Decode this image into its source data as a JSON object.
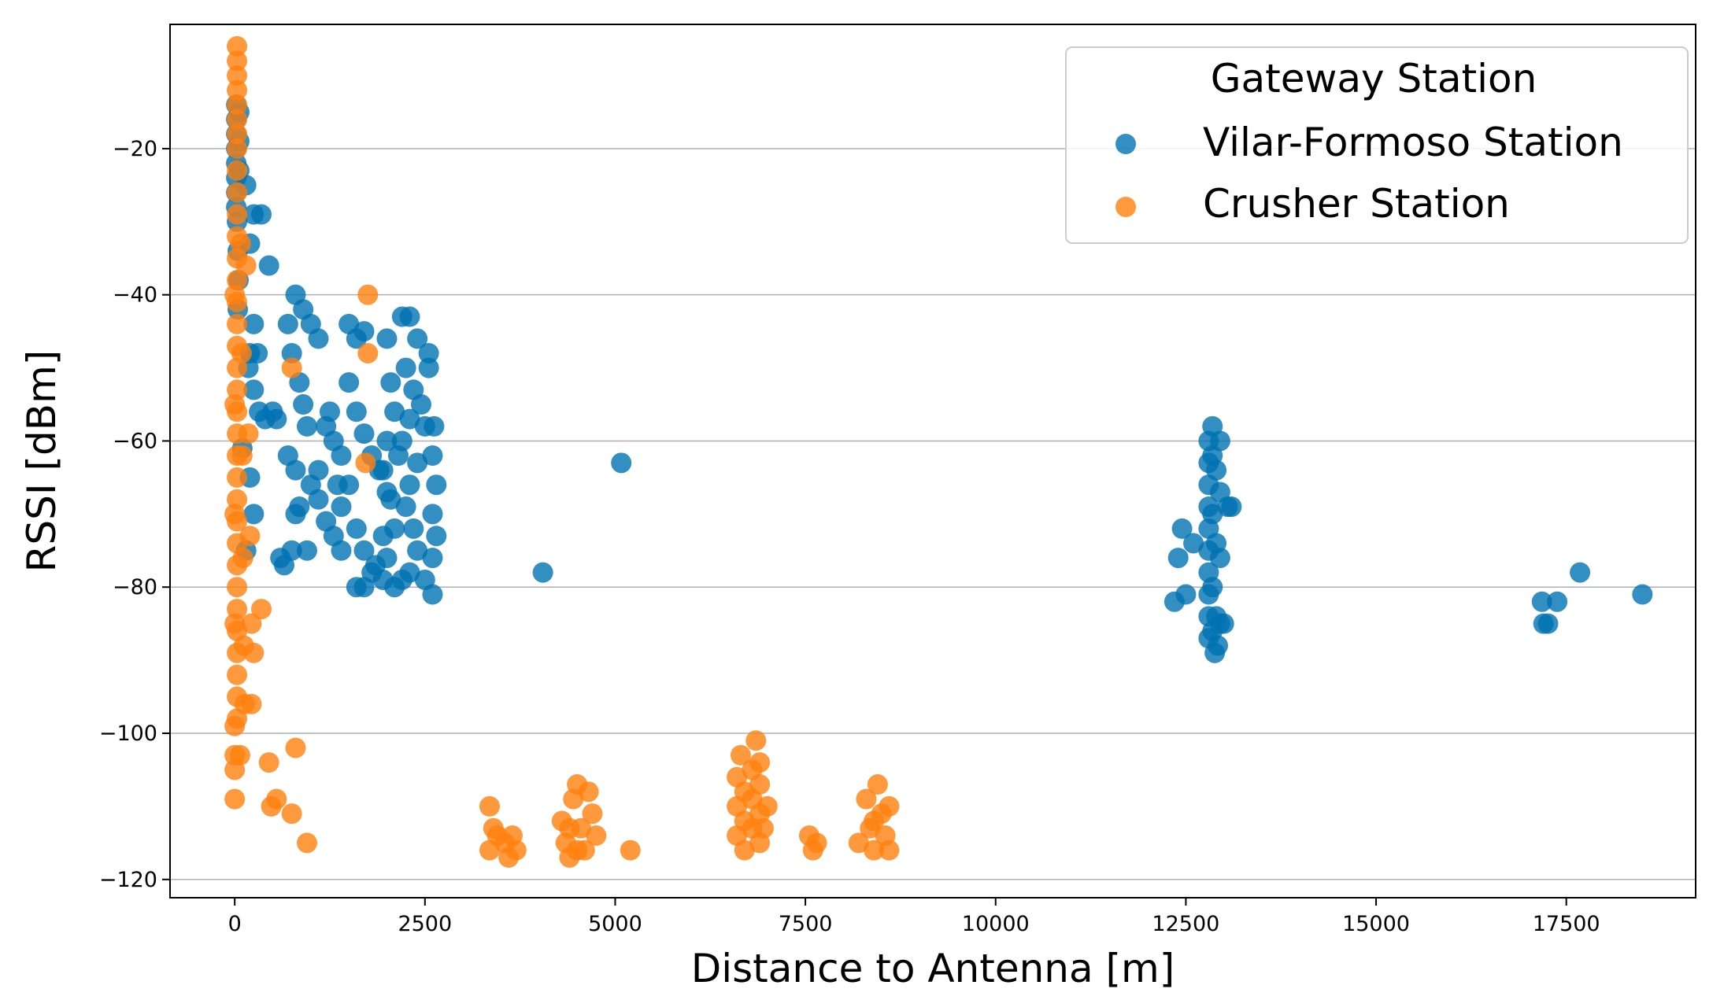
{
  "chart_data": {
    "type": "scatter",
    "title": "",
    "xlabel": "Distance to Antenna [m]",
    "ylabel": "RSSI [dBm]",
    "xlim": [
      -850,
      19200
    ],
    "ylim": [
      -122.5,
      -3
    ],
    "xticks": [
      0,
      2500,
      5000,
      7500,
      10000,
      12500,
      15000,
      17500
    ],
    "xtick_labels": [
      "0",
      "2500",
      "5000",
      "7500",
      "10000",
      "12500",
      "15000",
      "17500"
    ],
    "yticks": [
      -20,
      -40,
      -60,
      -80,
      -100,
      -120
    ],
    "ytick_labels": [
      "−20",
      "−40",
      "−60",
      "−80",
      "−100",
      "−120"
    ],
    "grid": "horizontal",
    "legend": {
      "title": "Gateway Station",
      "position": "top-right"
    },
    "series": [
      {
        "name": "Vilar-Formoso Station",
        "color": "#0072B2",
        "points": [
          [
            20,
            -14
          ],
          [
            20,
            -16
          ],
          [
            20,
            -18
          ],
          [
            20,
            -20
          ],
          [
            20,
            -22
          ],
          [
            20,
            -24
          ],
          [
            20,
            -26
          ],
          [
            20,
            -28
          ],
          [
            60,
            -15
          ],
          [
            60,
            -19
          ],
          [
            60,
            -23
          ],
          [
            30,
            -30
          ],
          [
            40,
            -34
          ],
          [
            50,
            -38
          ],
          [
            40,
            -42
          ],
          [
            150,
            -25
          ],
          [
            250,
            -29
          ],
          [
            350,
            -29
          ],
          [
            450,
            -36
          ],
          [
            200,
            -33
          ],
          [
            250,
            -44
          ],
          [
            200,
            -48
          ],
          [
            300,
            -48
          ],
          [
            180,
            -50
          ],
          [
            250,
            -53
          ],
          [
            320,
            -56
          ],
          [
            400,
            -57
          ],
          [
            100,
            -61
          ],
          [
            200,
            -65
          ],
          [
            250,
            -70
          ],
          [
            150,
            -75
          ],
          [
            500,
            -56
          ],
          [
            550,
            -57
          ],
          [
            600,
            -76
          ],
          [
            650,
            -77
          ],
          [
            750,
            -75
          ],
          [
            800,
            -70
          ],
          [
            850,
            -69
          ],
          [
            800,
            -40
          ],
          [
            900,
            -42
          ],
          [
            1000,
            -44
          ],
          [
            1100,
            -46
          ],
          [
            700,
            -44
          ],
          [
            750,
            -48
          ],
          [
            850,
            -52
          ],
          [
            900,
            -55
          ],
          [
            950,
            -58
          ],
          [
            700,
            -62
          ],
          [
            800,
            -64
          ],
          [
            1000,
            -66
          ],
          [
            1100,
            -68
          ],
          [
            1200,
            -71
          ],
          [
            1300,
            -73
          ],
          [
            1400,
            -75
          ],
          [
            950,
            -75
          ],
          [
            1500,
            -44
          ],
          [
            1600,
            -46
          ],
          [
            1700,
            -45
          ],
          [
            1500,
            -52
          ],
          [
            1600,
            -56
          ],
          [
            1700,
            -59
          ],
          [
            1800,
            -62
          ],
          [
            1900,
            -64
          ],
          [
            1500,
            -66
          ],
          [
            1400,
            -69
          ],
          [
            1600,
            -72
          ],
          [
            1700,
            -75
          ],
          [
            1800,
            -78
          ],
          [
            1600,
            -80
          ],
          [
            1700,
            -80
          ],
          [
            1850,
            -77
          ],
          [
            1950,
            -73
          ],
          [
            2000,
            -46
          ],
          [
            2050,
            -52
          ],
          [
            2100,
            -56
          ],
          [
            2000,
            -60
          ],
          [
            1950,
            -64
          ],
          [
            2050,
            -68
          ],
          [
            2100,
            -72
          ],
          [
            2000,
            -76
          ],
          [
            1950,
            -79
          ],
          [
            2100,
            -80
          ],
          [
            2200,
            -43
          ],
          [
            2300,
            -43
          ],
          [
            2400,
            -46
          ],
          [
            2250,
            -50
          ],
          [
            2350,
            -53
          ],
          [
            2300,
            -57
          ],
          [
            2200,
            -60
          ],
          [
            2400,
            -63
          ],
          [
            2300,
            -66
          ],
          [
            2250,
            -69
          ],
          [
            2350,
            -72
          ],
          [
            2400,
            -75
          ],
          [
            2300,
            -78
          ],
          [
            2200,
            -79
          ],
          [
            2450,
            -55
          ],
          [
            2500,
            -58
          ],
          [
            2550,
            -50
          ],
          [
            2600,
            -62
          ],
          [
            2650,
            -66
          ],
          [
            2600,
            -70
          ],
          [
            2650,
            -73
          ],
          [
            2600,
            -76
          ],
          [
            2600,
            -81
          ],
          [
            2500,
            -79
          ],
          [
            2550,
            -48
          ],
          [
            2620,
            -58
          ],
          [
            2150,
            -62
          ],
          [
            2000,
            -67
          ],
          [
            1300,
            -60
          ],
          [
            1400,
            -62
          ],
          [
            1200,
            -58
          ],
          [
            1100,
            -64
          ],
          [
            1250,
            -56
          ],
          [
            1350,
            -66
          ],
          [
            4050,
            -78
          ],
          [
            5080,
            -63
          ],
          [
            12400,
            -76
          ],
          [
            12450,
            -72
          ],
          [
            12500,
            -81
          ],
          [
            12350,
            -82
          ],
          [
            12600,
            -74
          ],
          [
            12800,
            -60
          ],
          [
            12800,
            -63
          ],
          [
            12800,
            -66
          ],
          [
            12800,
            -69
          ],
          [
            12800,
            -72
          ],
          [
            12800,
            -75
          ],
          [
            12800,
            -78
          ],
          [
            12800,
            -81
          ],
          [
            12800,
            -84
          ],
          [
            12800,
            -87
          ],
          [
            12850,
            -58
          ],
          [
            12850,
            -62
          ],
          [
            12850,
            -70
          ],
          [
            12850,
            -80
          ],
          [
            12850,
            -86
          ],
          [
            12880,
            -89
          ],
          [
            12900,
            -64
          ],
          [
            12900,
            -74
          ],
          [
            12900,
            -84
          ],
          [
            12920,
            -88
          ],
          [
            12950,
            -60
          ],
          [
            12950,
            -67
          ],
          [
            12950,
            -76
          ],
          [
            12950,
            -85
          ],
          [
            13000,
            -85
          ],
          [
            13050,
            -69
          ],
          [
            13100,
            -69
          ],
          [
            17180,
            -82
          ],
          [
            17200,
            -85
          ],
          [
            17260,
            -85
          ],
          [
            17380,
            -82
          ],
          [
            17680,
            -78
          ],
          [
            18500,
            -81
          ]
        ]
      },
      {
        "name": "Crusher Station",
        "color": "#FF7F0E",
        "points": [
          [
            30,
            -6
          ],
          [
            30,
            -8
          ],
          [
            30,
            -10
          ],
          [
            30,
            -12
          ],
          [
            30,
            -14
          ],
          [
            30,
            -16
          ],
          [
            30,
            -18
          ],
          [
            30,
            -20
          ],
          [
            30,
            -23
          ],
          [
            30,
            -26
          ],
          [
            30,
            -29
          ],
          [
            30,
            -32
          ],
          [
            30,
            -35
          ],
          [
            30,
            -38
          ],
          [
            30,
            -41
          ],
          [
            30,
            -44
          ],
          [
            30,
            -47
          ],
          [
            30,
            -50
          ],
          [
            30,
            -53
          ],
          [
            30,
            -56
          ],
          [
            30,
            -59
          ],
          [
            30,
            -62
          ],
          [
            30,
            -65
          ],
          [
            30,
            -68
          ],
          [
            30,
            -71
          ],
          [
            30,
            -74
          ],
          [
            30,
            -77
          ],
          [
            30,
            -80
          ],
          [
            30,
            -83
          ],
          [
            30,
            -86
          ],
          [
            30,
            -89
          ],
          [
            30,
            -92
          ],
          [
            30,
            -95
          ],
          [
            30,
            -98
          ],
          [
            0,
            -40
          ],
          [
            0,
            -55
          ],
          [
            0,
            -70
          ],
          [
            0,
            -85
          ],
          [
            0,
            -99
          ],
          [
            0,
            -103
          ],
          [
            0,
            -105
          ],
          [
            0,
            -109
          ],
          [
            70,
            -103
          ],
          [
            80,
            -33
          ],
          [
            90,
            -48
          ],
          [
            100,
            -62
          ],
          [
            110,
            -76
          ],
          [
            120,
            -88
          ],
          [
            130,
            -96
          ],
          [
            150,
            -36
          ],
          [
            180,
            -59
          ],
          [
            200,
            -73
          ],
          [
            220,
            -85
          ],
          [
            250,
            -89
          ],
          [
            350,
            -83
          ],
          [
            220,
            -96
          ],
          [
            450,
            -104
          ],
          [
            480,
            -110
          ],
          [
            550,
            -109
          ],
          [
            750,
            -111
          ],
          [
            800,
            -102
          ],
          [
            950,
            -115
          ],
          [
            750,
            -50
          ],
          [
            1750,
            -40
          ],
          [
            1750,
            -48
          ],
          [
            1720,
            -63
          ],
          [
            3350,
            -110
          ],
          [
            3400,
            -113
          ],
          [
            3350,
            -116
          ],
          [
            3450,
            -114
          ],
          [
            3550,
            -115
          ],
          [
            3600,
            -117
          ],
          [
            3650,
            -114
          ],
          [
            3700,
            -116
          ],
          [
            4300,
            -112
          ],
          [
            4350,
            -115
          ],
          [
            4400,
            -117
          ],
          [
            4450,
            -109
          ],
          [
            4500,
            -107
          ],
          [
            4550,
            -113
          ],
          [
            4600,
            -116
          ],
          [
            4650,
            -108
          ],
          [
            4700,
            -111
          ],
          [
            4750,
            -114
          ],
          [
            4500,
            -116
          ],
          [
            4400,
            -113
          ],
          [
            5200,
            -116
          ],
          [
            6600,
            -106
          ],
          [
            6600,
            -110
          ],
          [
            6600,
            -114
          ],
          [
            6650,
            -103
          ],
          [
            6700,
            -108
          ],
          [
            6700,
            -112
          ],
          [
            6700,
            -116
          ],
          [
            6800,
            -105
          ],
          [
            6800,
            -109
          ],
          [
            6800,
            -113
          ],
          [
            6850,
            -101
          ],
          [
            6900,
            -104
          ],
          [
            6900,
            -107
          ],
          [
            6900,
            -111
          ],
          [
            6900,
            -115
          ],
          [
            6950,
            -113
          ],
          [
            7000,
            -110
          ],
          [
            7550,
            -114
          ],
          [
            7600,
            -116
          ],
          [
            7650,
            -115
          ],
          [
            8200,
            -115
          ],
          [
            8300,
            -109
          ],
          [
            8350,
            -113
          ],
          [
            8400,
            -116
          ],
          [
            8450,
            -107
          ],
          [
            8500,
            -111
          ],
          [
            8550,
            -114
          ],
          [
            8600,
            -110
          ],
          [
            8600,
            -116
          ],
          [
            8400,
            -112
          ]
        ]
      }
    ]
  }
}
